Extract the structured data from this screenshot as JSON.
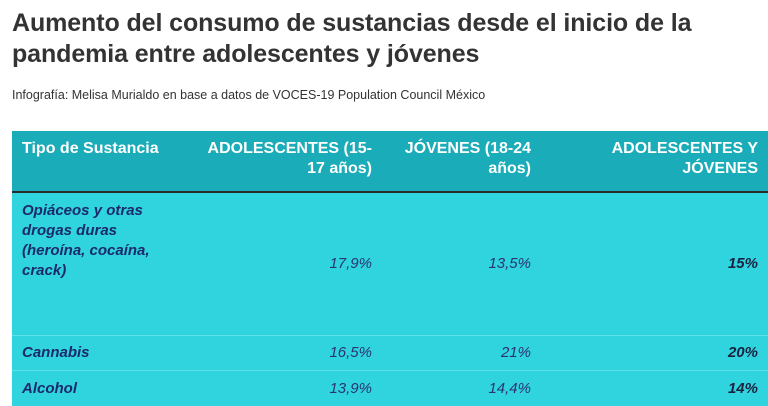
{
  "header": {
    "title": "Aumento del consumo de sustancias desde el inicio de la pandemia entre adolescentes y jóvenes",
    "subtitle": "Infografía: Melisa Murialdo en base a datos de VOCES-19 Population Council México"
  },
  "colors": {
    "header_bg": "#1aacb8",
    "body_bg": "#2fd4de",
    "body_text": "#1b2a6b"
  },
  "chart_data": {
    "type": "table",
    "title": "Aumento del consumo de sustancias desde el inicio de la pandemia entre adolescentes y jóvenes",
    "columns": [
      "Tipo de Sustancia",
      "ADOLESCENTES (15-17 años)",
      "JÓVENES (18-24 años)",
      "ADOLESCENTES Y JÓVENES"
    ],
    "rows": [
      {
        "sustancia": "Opiáceos y otras drogas duras (heroína, cocaína, crack)",
        "adolescentes": "17,9%",
        "jovenes": "13,5%",
        "ambos": "15%"
      },
      {
        "sustancia": "Cannabis",
        "adolescentes": "16,5%",
        "jovenes": "21%",
        "ambos": "20%"
      },
      {
        "sustancia": "Alcohol",
        "adolescentes": "13,9%",
        "jovenes": "14,4%",
        "ambos": "14%"
      }
    ]
  }
}
